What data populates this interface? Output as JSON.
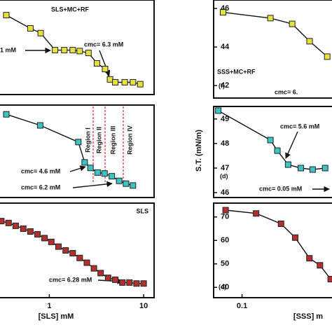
{
  "chart_data": [
    {
      "type": "line",
      "x": [
        0.35,
        0.63,
        0.81,
        1.15,
        1.44,
        1.77,
        2.1,
        2.6,
        3.2,
        3.9,
        4.4,
        5.0,
        6.3,
        7.7,
        9.2
      ],
      "values": [
        84,
        70,
        65,
        47,
        47,
        47,
        46,
        44,
        33,
        27,
        16,
        13,
        13,
        13,
        11
      ],
      "color": "#e6e040",
      "xlim": [
        0.29,
        12.9
      ],
      "ylim": [
        0,
        100
      ],
      "log_x": true,
      "annotations": [
        "SLS+MC+RF",
        "1 mM",
        "cmc= 6.3 mM"
      ]
    },
    {
      "type": "line",
      "x": [
        0.35,
        0.8,
        2.03,
        2.37,
        2.73,
        3.25,
        3.85,
        4.6,
        5.5,
        6.5,
        7.7
      ],
      "values": [
        90,
        78,
        60,
        38,
        32,
        27,
        26,
        23,
        18,
        15,
        13
      ],
      "color": "#3cc4c4",
      "xlim": [
        0.29,
        12.9
      ],
      "ylim": [
        0,
        100
      ],
      "log_x": true,
      "annotations": [
        "Region I",
        "Region II",
        "Region III",
        "Region IV",
        "cmc= 4.6 mM",
        "cmc= 6.2 mM"
      ]
    },
    {
      "type": "line",
      "x": [
        0.31,
        0.37,
        0.44,
        0.53,
        0.63,
        0.75,
        0.89,
        1.05,
        1.25,
        1.49,
        1.77,
        2.1,
        2.5,
        2.97,
        3.5,
        4.2,
        5.0,
        5.95,
        7.07,
        8.4,
        10.0
      ],
      "values": [
        81,
        79,
        76,
        73,
        70,
        67,
        63,
        59,
        54,
        50,
        47,
        42,
        37,
        31,
        26,
        21,
        19,
        16,
        16,
        15,
        15
      ],
      "color": "#b03030",
      "xlim": [
        0.29,
        12.9
      ],
      "ylim": [
        0,
        100
      ],
      "log_x": true,
      "xticks": [
        1,
        10
      ],
      "xlabel": "[SLS] mM",
      "annotations": [
        "SLS",
        "cmc= 6.28 mM"
      ]
    },
    {
      "type": "line",
      "x": [
        0.063,
        0.2,
        0.34,
        0.52,
        0.8
      ],
      "values": [
        45.8,
        45.5,
        45.2,
        44.3,
        43.5
      ],
      "color": "#e6e040",
      "xlim": [
        0.05,
        0.93
      ],
      "ylim": [
        41.35,
        46.44
      ],
      "log_x": true,
      "yticks": [
        46,
        44,
        42
      ],
      "annotations": [
        "SSS+MC+RF",
        "(f)",
        "cmc= 6."
      ]
    },
    {
      "type": "line",
      "x": [
        0.056,
        0.2,
        0.237,
        0.308,
        0.42,
        0.56,
        0.76
      ],
      "values": [
        49.34,
        48.14,
        47.71,
        47.14,
        47.0,
        46.94,
        47.0
      ],
      "color": "#3cc4c4",
      "xlim": [
        0.05,
        0.93
      ],
      "ylim": [
        45.8,
        49.51
      ],
      "log_x": true,
      "yticks": [
        49,
        48,
        47,
        46
      ],
      "ylabel": "S.T. (mN/m)",
      "annotations": [
        "(d)",
        "cmc= 5.6 mM",
        "cmc= 0.05 mM"
      ]
    },
    {
      "type": "line",
      "x": [
        0.067,
        0.141,
        0.259,
        0.366,
        0.518,
        0.67,
        0.87
      ],
      "values": [
        72.9,
        71.5,
        67.1,
        61.2,
        52.4,
        49.4,
        43.5
      ],
      "color": "#b03030",
      "xlim": [
        0.05,
        0.93
      ],
      "ylim": [
        35.6,
        75.9
      ],
      "log_x": true,
      "yticks": [
        70,
        60,
        50,
        40
      ],
      "xticks": [
        0.1
      ],
      "xlabel": "[SSS] m",
      "annotations": [
        "(c)"
      ]
    }
  ]
}
